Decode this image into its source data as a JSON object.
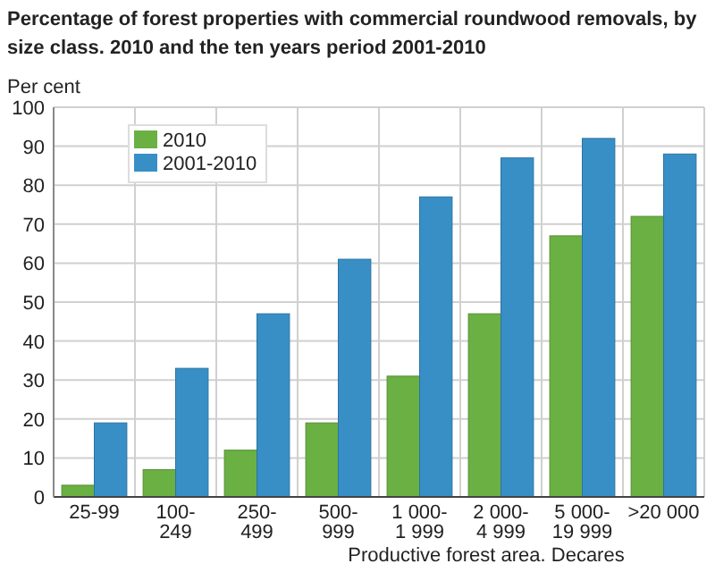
{
  "chart_data": {
    "type": "bar",
    "title": "Percentage of forest properties with commercial roundwood removals, by size class. 2010 and the ten years period 2001-2010",
    "ylabel": "Per cent",
    "xlabel": "Productive forest area. Decares",
    "categories": [
      "25-99",
      "100-\n249",
      "250-\n499",
      "500-\n999",
      "1 000-\n1 999",
      "2 000-\n4 999",
      "5 000-\n19 999",
      ">20 000"
    ],
    "series": [
      {
        "name": "2010",
        "color": "#6ab043",
        "values": [
          3,
          7,
          12,
          19,
          31,
          47,
          67,
          72
        ]
      },
      {
        "name": "2001-2010",
        "color": "#378fc6",
        "values": [
          19,
          33,
          47,
          61,
          77,
          87,
          92,
          88
        ]
      }
    ],
    "ylim": [
      0,
      100
    ],
    "yticks": [
      0,
      10,
      20,
      30,
      40,
      50,
      60,
      70,
      80,
      90,
      100
    ],
    "grid": true,
    "legend": "top left"
  }
}
